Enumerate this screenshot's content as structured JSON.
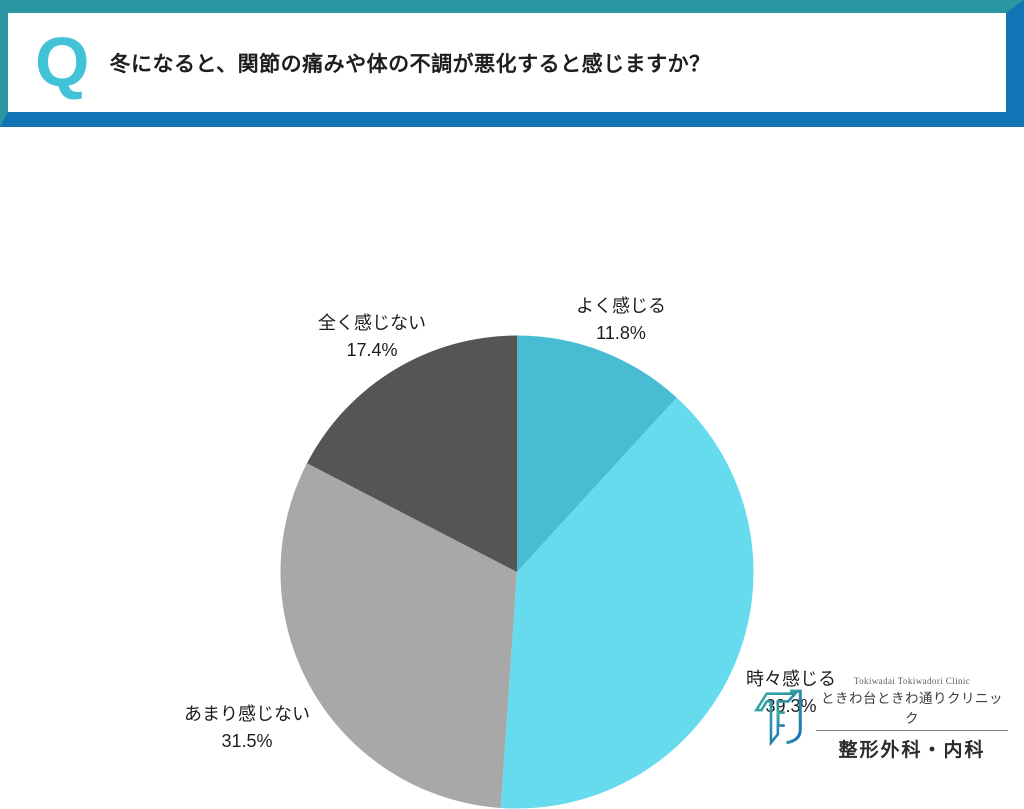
{
  "header": {
    "q_mark": "Q",
    "question": "冬になると、関節の痛みや体の不調が悪化すると感じますか？",
    "colors": {
      "band_top_left": "#2b96a2",
      "band_bottom_right": "#1273b5",
      "q_mark": "#41c2d6"
    }
  },
  "chart_data": {
    "type": "pie",
    "title": "冬になると、関節の痛みや体の不調が悪化すると感じますか？",
    "start_angle_deg": 0,
    "direction": "clockwise",
    "legend_position": "none",
    "slices": [
      {
        "label": "よく感じる",
        "value": 11.8,
        "pct_label": "11.8%",
        "color": "#47bcd2"
      },
      {
        "label": "時々感じる",
        "value": 39.3,
        "pct_label": "39.3%",
        "color": "#66dbed"
      },
      {
        "label": "あまり感じない",
        "value": 31.5,
        "pct_label": "31.5%",
        "color": "#a8a8a8"
      },
      {
        "label": "全く感じない",
        "value": 17.4,
        "pct_label": "17.4%",
        "color": "#575454"
      }
    ]
  },
  "footer_logo": {
    "clinic_en": "Tokiwadai Tokiwadori Clinic",
    "clinic_jp": "ときわ台ときわ通りクリニック",
    "departments": "整形外科・内科",
    "mark_gradient_start": "#38b29b",
    "mark_gradient_end": "#1b6fb8"
  }
}
